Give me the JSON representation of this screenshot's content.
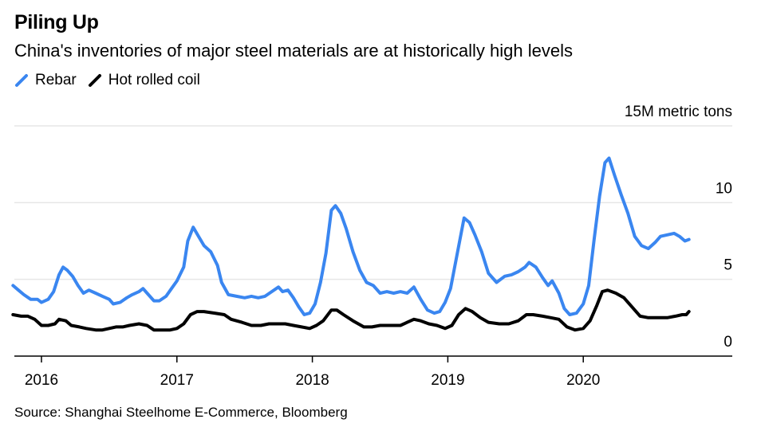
{
  "title": "Piling Up",
  "subtitle": "China's inventories of major steel materials are at historically high levels",
  "source": "Source: Shanghai Steelhome E-Commerce, Bloomberg",
  "colors": {
    "rebar": "#3a86f0",
    "hot_rolled_coil": "#000000",
    "grid": "#e6e6e6",
    "axis": "#000000"
  },
  "chart_data": {
    "type": "line",
    "title": "Piling Up",
    "subtitle": "China's inventories of major steel materials are at historically high levels",
    "ylabel": "15M metric tons",
    "ylim": [
      0,
      15
    ],
    "yticks": [
      {
        "value": 0,
        "label": "0"
      },
      {
        "value": 5,
        "label": "5"
      },
      {
        "value": 10,
        "label": "10"
      },
      {
        "value": 15,
        "label": "15M metric tons"
      }
    ],
    "xlim": [
      2015.8,
      2021.1
    ],
    "xticks": [
      {
        "value": 2016,
        "label": "2016"
      },
      {
        "value": 2017,
        "label": "2017"
      },
      {
        "value": 2018,
        "label": "2018"
      },
      {
        "value": 2019,
        "label": "2019"
      },
      {
        "value": 2020,
        "label": "2020"
      }
    ],
    "grid": true,
    "legend_placement": "top-left",
    "series": [
      {
        "name": "Rebar",
        "color": "#3a86f0",
        "points": [
          [
            2015.79,
            4.6
          ],
          [
            2015.83,
            4.3
          ],
          [
            2015.87,
            4.0
          ],
          [
            2015.92,
            3.7
          ],
          [
            2015.97,
            3.7
          ],
          [
            2016.0,
            3.5
          ],
          [
            2016.05,
            3.7
          ],
          [
            2016.09,
            4.2
          ],
          [
            2016.13,
            5.3
          ],
          [
            2016.16,
            5.8
          ],
          [
            2016.19,
            5.6
          ],
          [
            2016.23,
            5.2
          ],
          [
            2016.27,
            4.6
          ],
          [
            2016.31,
            4.1
          ],
          [
            2016.35,
            4.3
          ],
          [
            2016.4,
            4.1
          ],
          [
            2016.45,
            3.9
          ],
          [
            2016.5,
            3.7
          ],
          [
            2016.53,
            3.4
          ],
          [
            2016.58,
            3.5
          ],
          [
            2016.63,
            3.8
          ],
          [
            2016.67,
            4.0
          ],
          [
            2016.72,
            4.2
          ],
          [
            2016.75,
            4.4
          ],
          [
            2016.78,
            4.1
          ],
          [
            2016.83,
            3.6
          ],
          [
            2016.87,
            3.6
          ],
          [
            2016.92,
            3.9
          ],
          [
            2016.96,
            4.4
          ],
          [
            2017.0,
            4.9
          ],
          [
            2017.05,
            5.8
          ],
          [
            2017.08,
            7.5
          ],
          [
            2017.12,
            8.4
          ],
          [
            2017.16,
            7.8
          ],
          [
            2017.2,
            7.2
          ],
          [
            2017.25,
            6.8
          ],
          [
            2017.3,
            5.9
          ],
          [
            2017.33,
            4.8
          ],
          [
            2017.38,
            4.0
          ],
          [
            2017.44,
            3.9
          ],
          [
            2017.5,
            3.8
          ],
          [
            2017.55,
            3.9
          ],
          [
            2017.6,
            3.8
          ],
          [
            2017.65,
            3.9
          ],
          [
            2017.7,
            4.2
          ],
          [
            2017.75,
            4.5
          ],
          [
            2017.78,
            4.2
          ],
          [
            2017.82,
            4.3
          ],
          [
            2017.86,
            3.8
          ],
          [
            2017.9,
            3.2
          ],
          [
            2017.94,
            2.7
          ],
          [
            2017.98,
            2.8
          ],
          [
            2018.02,
            3.4
          ],
          [
            2018.06,
            4.8
          ],
          [
            2018.1,
            6.7
          ],
          [
            2018.14,
            9.5
          ],
          [
            2018.17,
            9.8
          ],
          [
            2018.21,
            9.3
          ],
          [
            2018.25,
            8.3
          ],
          [
            2018.3,
            6.8
          ],
          [
            2018.35,
            5.6
          ],
          [
            2018.4,
            4.8
          ],
          [
            2018.45,
            4.6
          ],
          [
            2018.5,
            4.1
          ],
          [
            2018.55,
            4.2
          ],
          [
            2018.6,
            4.1
          ],
          [
            2018.65,
            4.2
          ],
          [
            2018.7,
            4.1
          ],
          [
            2018.75,
            4.5
          ],
          [
            2018.8,
            3.7
          ],
          [
            2018.85,
            3.0
          ],
          [
            2018.9,
            2.8
          ],
          [
            2018.94,
            2.9
          ],
          [
            2018.98,
            3.5
          ],
          [
            2019.02,
            4.4
          ],
          [
            2019.07,
            6.7
          ],
          [
            2019.12,
            9.0
          ],
          [
            2019.16,
            8.7
          ],
          [
            2019.2,
            7.9
          ],
          [
            2019.25,
            6.8
          ],
          [
            2019.3,
            5.4
          ],
          [
            2019.36,
            4.8
          ],
          [
            2019.42,
            5.2
          ],
          [
            2019.47,
            5.3
          ],
          [
            2019.52,
            5.5
          ],
          [
            2019.57,
            5.8
          ],
          [
            2019.6,
            6.1
          ],
          [
            2019.65,
            5.8
          ],
          [
            2019.7,
            5.1
          ],
          [
            2019.74,
            4.6
          ],
          [
            2019.77,
            4.9
          ],
          [
            2019.82,
            4.1
          ],
          [
            2019.86,
            3.1
          ],
          [
            2019.9,
            2.7
          ],
          [
            2019.95,
            2.8
          ],
          [
            2020.0,
            3.4
          ],
          [
            2020.04,
            4.6
          ],
          [
            2020.08,
            7.6
          ],
          [
            2020.12,
            10.4
          ],
          [
            2020.16,
            12.6
          ],
          [
            2020.19,
            12.9
          ],
          [
            2020.23,
            11.8
          ],
          [
            2020.28,
            10.5
          ],
          [
            2020.33,
            9.3
          ],
          [
            2020.38,
            7.8
          ],
          [
            2020.43,
            7.2
          ],
          [
            2020.48,
            7.0
          ],
          [
            2020.53,
            7.4
          ],
          [
            2020.57,
            7.8
          ],
          [
            2020.62,
            7.9
          ],
          [
            2020.67,
            8.0
          ],
          [
            2020.71,
            7.8
          ],
          [
            2020.75,
            7.5
          ],
          [
            2020.78,
            7.6
          ]
        ]
      },
      {
        "name": "Hot rolled coil",
        "color": "#000000",
        "points": [
          [
            2015.79,
            2.7
          ],
          [
            2015.85,
            2.6
          ],
          [
            2015.9,
            2.6
          ],
          [
            2015.95,
            2.4
          ],
          [
            2016.0,
            2.0
          ],
          [
            2016.05,
            2.0
          ],
          [
            2016.1,
            2.1
          ],
          [
            2016.13,
            2.4
          ],
          [
            2016.18,
            2.3
          ],
          [
            2016.22,
            2.0
          ],
          [
            2016.28,
            1.9
          ],
          [
            2016.33,
            1.8
          ],
          [
            2016.4,
            1.7
          ],
          [
            2016.45,
            1.7
          ],
          [
            2016.5,
            1.8
          ],
          [
            2016.55,
            1.9
          ],
          [
            2016.6,
            1.9
          ],
          [
            2016.65,
            2.0
          ],
          [
            2016.72,
            2.1
          ],
          [
            2016.78,
            2.0
          ],
          [
            2016.83,
            1.7
          ],
          [
            2016.88,
            1.7
          ],
          [
            2016.95,
            1.7
          ],
          [
            2017.0,
            1.8
          ],
          [
            2017.05,
            2.1
          ],
          [
            2017.1,
            2.7
          ],
          [
            2017.15,
            2.9
          ],
          [
            2017.2,
            2.9
          ],
          [
            2017.28,
            2.8
          ],
          [
            2017.35,
            2.7
          ],
          [
            2017.4,
            2.4
          ],
          [
            2017.48,
            2.2
          ],
          [
            2017.55,
            2.0
          ],
          [
            2017.62,
            2.0
          ],
          [
            2017.68,
            2.1
          ],
          [
            2017.74,
            2.1
          ],
          [
            2017.8,
            2.1
          ],
          [
            2017.86,
            2.0
          ],
          [
            2017.92,
            1.9
          ],
          [
            2017.98,
            1.8
          ],
          [
            2018.03,
            2.0
          ],
          [
            2018.08,
            2.3
          ],
          [
            2018.14,
            3.0
          ],
          [
            2018.18,
            3.0
          ],
          [
            2018.23,
            2.7
          ],
          [
            2018.3,
            2.3
          ],
          [
            2018.38,
            1.9
          ],
          [
            2018.44,
            1.9
          ],
          [
            2018.5,
            2.0
          ],
          [
            2018.57,
            2.0
          ],
          [
            2018.65,
            2.0
          ],
          [
            2018.7,
            2.2
          ],
          [
            2018.75,
            2.4
          ],
          [
            2018.8,
            2.3
          ],
          [
            2018.86,
            2.1
          ],
          [
            2018.92,
            2.0
          ],
          [
            2018.98,
            1.8
          ],
          [
            2019.03,
            2.0
          ],
          [
            2019.08,
            2.7
          ],
          [
            2019.13,
            3.1
          ],
          [
            2019.18,
            2.9
          ],
          [
            2019.24,
            2.5
          ],
          [
            2019.3,
            2.2
          ],
          [
            2019.38,
            2.1
          ],
          [
            2019.45,
            2.1
          ],
          [
            2019.52,
            2.3
          ],
          [
            2019.58,
            2.7
          ],
          [
            2019.63,
            2.7
          ],
          [
            2019.7,
            2.6
          ],
          [
            2019.76,
            2.5
          ],
          [
            2019.82,
            2.4
          ],
          [
            2019.88,
            1.9
          ],
          [
            2019.94,
            1.7
          ],
          [
            2020.0,
            1.8
          ],
          [
            2020.05,
            2.3
          ],
          [
            2020.1,
            3.3
          ],
          [
            2020.14,
            4.2
          ],
          [
            2020.18,
            4.3
          ],
          [
            2020.24,
            4.1
          ],
          [
            2020.3,
            3.8
          ],
          [
            2020.36,
            3.2
          ],
          [
            2020.42,
            2.6
          ],
          [
            2020.48,
            2.5
          ],
          [
            2020.55,
            2.5
          ],
          [
            2020.62,
            2.5
          ],
          [
            2020.68,
            2.6
          ],
          [
            2020.73,
            2.7
          ],
          [
            2020.76,
            2.7
          ],
          [
            2020.78,
            2.9
          ]
        ]
      }
    ]
  }
}
